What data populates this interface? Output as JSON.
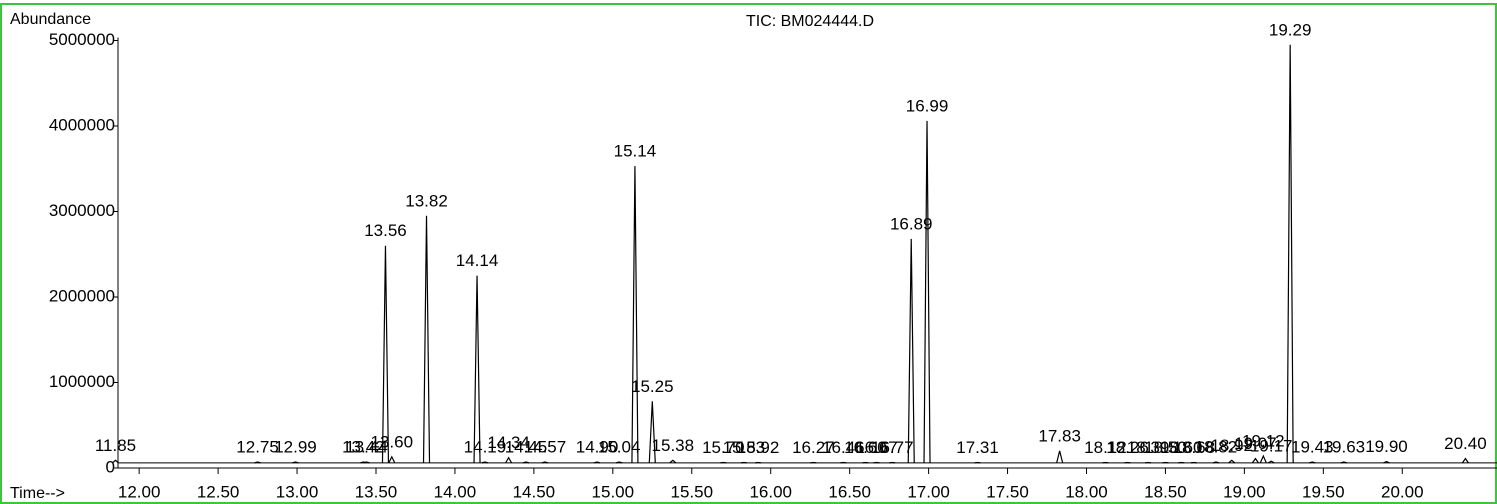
{
  "chart_data": {
    "type": "chromatogram",
    "title": "TIC: BM024444.D",
    "y_label": "Abundance",
    "x_label": "Time-->",
    "xlim": [
      11.866,
      20.6
    ],
    "ylim": [
      0,
      5000000
    ],
    "yticks": [
      0,
      1000000,
      2000000,
      3000000,
      4000000,
      5000000
    ],
    "xticks": [
      {
        "value": 12,
        "label": "12.00"
      },
      {
        "value": 12.5,
        "label": "12.50"
      },
      {
        "value": 13,
        "label": "13.00"
      },
      {
        "value": 13.5,
        "label": "13.50"
      },
      {
        "value": 14,
        "label": "14.00"
      },
      {
        "value": 14.5,
        "label": "14.50"
      },
      {
        "value": 15,
        "label": "15.00"
      },
      {
        "value": 15.5,
        "label": "15.50"
      },
      {
        "value": 16,
        "label": "16.00"
      },
      {
        "value": 16.5,
        "label": "16.50"
      },
      {
        "value": 17,
        "label": "17.00"
      },
      {
        "value": 17.5,
        "label": "17.50"
      },
      {
        "value": 18,
        "label": "18.00"
      },
      {
        "value": 18.5,
        "label": "18.50"
      },
      {
        "value": 19,
        "label": "19.00"
      },
      {
        "value": 19.5,
        "label": "19.50"
      },
      {
        "value": 20,
        "label": "20.00"
      }
    ],
    "baseline": 60000,
    "color": "#000000",
    "x": [
      11.85,
      12.75,
      12.99,
      13.42,
      13.44,
      13.56,
      13.6,
      13.82,
      14.14,
      14.19,
      14.34,
      14.45,
      14.57,
      14.9,
      15.04,
      15.14,
      15.25,
      15.38,
      15.7,
      15.83,
      15.92,
      16.27,
      16.46,
      16.6,
      16.67,
      16.77,
      16.89,
      16.99,
      17.31,
      17.83,
      18.12,
      18.26,
      18.39,
      18.5,
      18.6,
      18.68,
      18.82,
      18.92,
      19.07,
      19.12,
      19.17,
      19.29,
      19.43,
      19.63,
      19.9,
      20.4
    ],
    "peak_labels": [
      "11.85",
      "12.75",
      "12.99",
      "13.42",
      "13.44",
      "13.56",
      "13.60",
      "13.82",
      "14.14",
      "14.19",
      "14.34",
      "14.45",
      "14.57",
      "14.90",
      "15.04",
      "15.14",
      "15.25",
      "15.38",
      "15.70",
      "15.83",
      "15.92",
      "16.27",
      "16.46",
      "16.60",
      "16.67",
      "16.77",
      "16.89",
      "16.99",
      "17.31",
      "17.83",
      "18.12",
      "18.26",
      "18.39",
      "18.50",
      "18.60",
      "18.68",
      "18.82",
      "18.92",
      "19.07",
      "19.12",
      "19.17",
      "19.29",
      "19.43",
      "19.63",
      "19.90",
      "20.40"
    ],
    "values": [
      90000,
      70000,
      70000,
      70000,
      70000,
      2600000,
      130000,
      2950000,
      2250000,
      70000,
      120000,
      70000,
      70000,
      70000,
      70000,
      3530000,
      780000,
      90000,
      65000,
      65000,
      65000,
      65000,
      65000,
      65000,
      65000,
      65000,
      2680000,
      4060000,
      65000,
      200000,
      65000,
      65000,
      65000,
      65000,
      65000,
      65000,
      70000,
      90000,
      110000,
      140000,
      80000,
      4950000,
      70000,
      70000,
      75000,
      110000
    ]
  }
}
